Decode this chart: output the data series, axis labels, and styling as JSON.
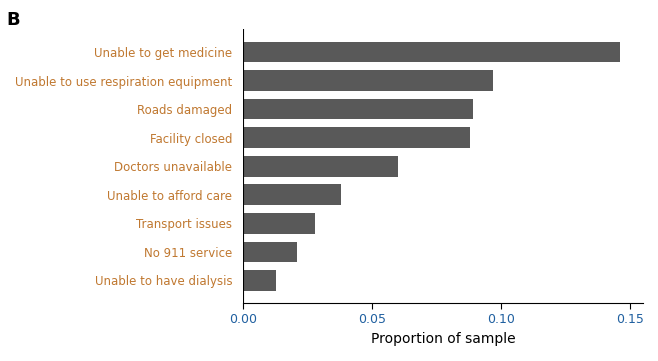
{
  "categories": [
    "Unable to have dialysis",
    "No 911 service",
    "Transport issues",
    "Unable to afford care",
    "Doctors unavailable",
    "Facility closed",
    "Roads damaged",
    "Unable to use respiration equipment",
    "Unable to get medicine"
  ],
  "values": [
    0.013,
    0.021,
    0.028,
    0.038,
    0.06,
    0.088,
    0.089,
    0.097,
    0.146
  ],
  "bar_color": "#595959",
  "label_color": "#c07830",
  "xtick_color": "#2060a0",
  "xlabel": "Proportion of sample",
  "panel_label": "B",
  "xlim": [
    0,
    0.155
  ],
  "xticks": [
    0.0,
    0.05,
    0.1,
    0.15
  ],
  "xtick_labels": [
    "0.00",
    "0.05",
    "0.10",
    "0.15"
  ],
  "background_color": "#ffffff",
  "figsize": [
    6.58,
    3.61
  ],
  "dpi": 100
}
